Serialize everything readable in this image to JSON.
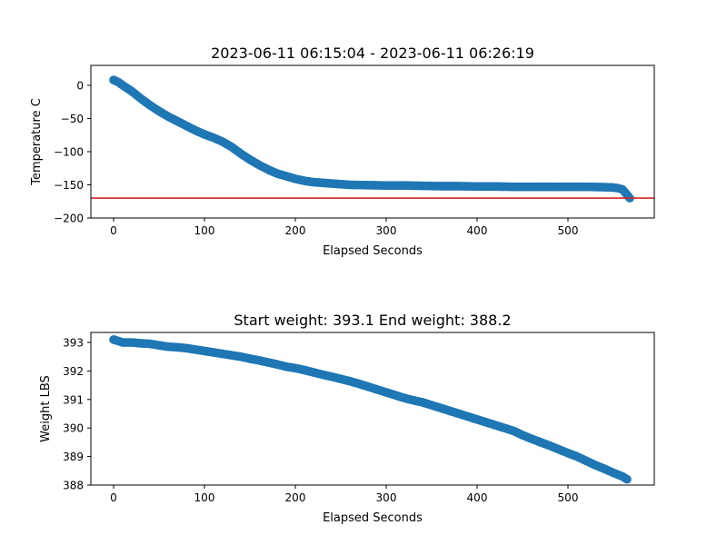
{
  "chart_data": [
    {
      "type": "scatter",
      "title": "2023-06-11 06:15:04 - 2023-06-11 06:26:19",
      "xlabel": "Elapsed Seconds",
      "ylabel": "Temperature C",
      "xlim": [
        -25,
        595
      ],
      "ylim": [
        -200,
        30
      ],
      "xticks": [
        0,
        100,
        200,
        300,
        400,
        500
      ],
      "yticks": [
        0,
        -50,
        -100,
        -150,
        -200
      ],
      "xtick_labels": [
        "0",
        "100",
        "200",
        "300",
        "400",
        "500"
      ],
      "ytick_labels": [
        "0",
        "−50",
        "−100",
        "−150",
        "−200"
      ],
      "grid": false,
      "marker_color": "#1f77b4",
      "series": [
        {
          "x": [
            0,
            5,
            10,
            20,
            30,
            40,
            50,
            60,
            70,
            80,
            90,
            100,
            110,
            120,
            130,
            140,
            150,
            160,
            170,
            180,
            190,
            200,
            210,
            220,
            230,
            240,
            250,
            260,
            280,
            300,
            320,
            340,
            360,
            380,
            400,
            420,
            440,
            460,
            480,
            500,
            520,
            540,
            550,
            555,
            560,
            565,
            568
          ],
          "y": [
            8,
            5,
            0,
            -9,
            -20,
            -30,
            -39,
            -47,
            -54,
            -61,
            -68,
            -74,
            -79,
            -85,
            -93,
            -103,
            -112,
            -120,
            -127,
            -133,
            -137,
            -141,
            -144,
            -146,
            -147,
            -148,
            -149,
            -150,
            -150.5,
            -151,
            -151,
            -151.5,
            -152,
            -152,
            -152.5,
            -152.5,
            -153,
            -153,
            -153,
            -153,
            -153,
            -153.5,
            -154,
            -155,
            -157,
            -165,
            -170
          ]
        }
      ],
      "reference_line": {
        "y": -170,
        "color": "#d62728"
      }
    },
    {
      "type": "scatter",
      "title": "Start weight: 393.1 End weight: 388.2",
      "xlabel": "Elapsed Seconds",
      "ylabel": "Weight LBS",
      "xlim": [
        -25,
        595
      ],
      "ylim": [
        388,
        393.35
      ],
      "xticks": [
        0,
        100,
        200,
        300,
        400,
        500
      ],
      "yticks": [
        388,
        389,
        390,
        391,
        392,
        393
      ],
      "xtick_labels": [
        "0",
        "100",
        "200",
        "300",
        "400",
        "500"
      ],
      "ytick_labels": [
        "388",
        "389",
        "390",
        "391",
        "392",
        "393"
      ],
      "grid": false,
      "marker_color": "#1f77b4",
      "series": [
        {
          "x": [
            0,
            10,
            20,
            30,
            40,
            50,
            60,
            70,
            80,
            90,
            100,
            110,
            120,
            130,
            140,
            150,
            160,
            170,
            180,
            190,
            200,
            210,
            220,
            230,
            240,
            250,
            260,
            270,
            280,
            290,
            300,
            310,
            320,
            330,
            340,
            350,
            360,
            370,
            380,
            390,
            400,
            410,
            420,
            430,
            440,
            450,
            460,
            470,
            480,
            490,
            500,
            510,
            520,
            530,
            540,
            550,
            560,
            565
          ],
          "y": [
            393.1,
            393.0,
            393.0,
            392.97,
            392.95,
            392.9,
            392.85,
            392.83,
            392.8,
            392.75,
            392.7,
            392.65,
            392.6,
            392.55,
            392.5,
            392.43,
            392.37,
            392.3,
            392.23,
            392.15,
            392.1,
            392.03,
            391.95,
            391.87,
            391.8,
            391.72,
            391.64,
            391.55,
            391.45,
            391.35,
            391.25,
            391.15,
            391.05,
            390.97,
            390.9,
            390.8,
            390.7,
            390.6,
            390.5,
            390.4,
            390.3,
            390.2,
            390.1,
            390.0,
            389.9,
            389.75,
            389.62,
            389.5,
            389.38,
            389.25,
            389.12,
            389.0,
            388.85,
            388.7,
            388.57,
            388.43,
            388.3,
            388.2
          ]
        }
      ]
    }
  ]
}
